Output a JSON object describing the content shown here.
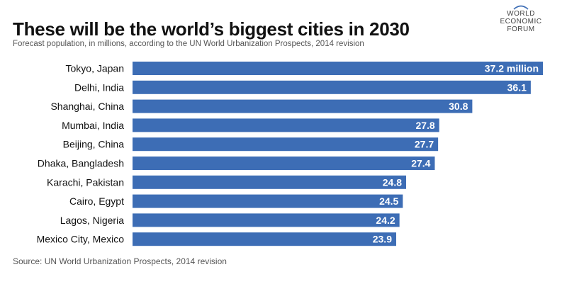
{
  "header": {
    "title": "These will be the world’s biggest cities in 2030",
    "subtitle": "Forecast population, in millions, according to the UN World Urbanization Prospects, 2014 revision"
  },
  "logo": {
    "line1": "WORLD",
    "line2": "ECONOMIC",
    "line3": "FORUM"
  },
  "footer": {
    "source": "Source: UN World Urbanization Prospects, 2014 revision"
  },
  "colors": {
    "bar": "#3d6db5",
    "value_text": "#ffffff",
    "label_text": "#111111"
  },
  "chart_data": {
    "type": "bar",
    "orientation": "horizontal",
    "categories": [
      "Tokyo, Japan",
      "Delhi, India",
      "Shanghai, China",
      "Mumbai, India",
      "Beijing, China",
      "Dhaka, Bangladesh",
      "Karachi, Pakistan",
      "Cairo, Egypt",
      "Lagos, Nigeria",
      "Mexico City, Mexico"
    ],
    "values": [
      37.2,
      36.1,
      30.8,
      27.8,
      27.7,
      27.4,
      24.8,
      24.5,
      24.2,
      23.9
    ],
    "value_labels": [
      "37.2 million",
      "36.1",
      "30.8",
      "27.8",
      "27.7",
      "27.4",
      "24.8",
      "24.5",
      "24.2",
      "23.9"
    ],
    "xlim": [
      0,
      37.2
    ],
    "grid": false,
    "legend": "none"
  }
}
